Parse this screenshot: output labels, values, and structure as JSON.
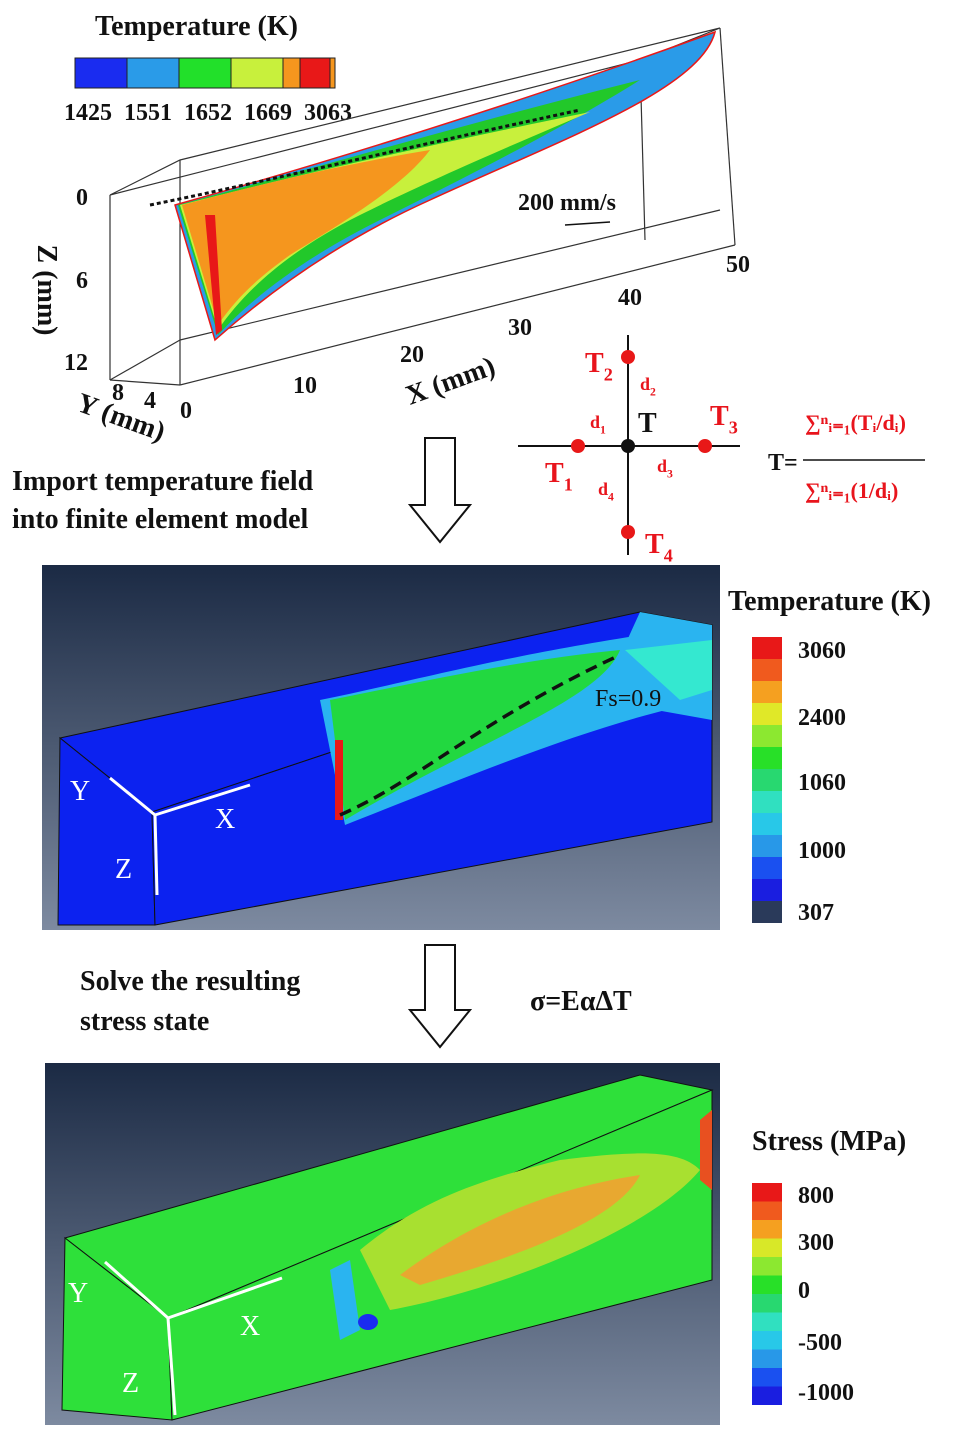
{
  "top_plot": {
    "legend_title": "Temperature (K)",
    "legend_labels": [
      1425,
      1551,
      1652,
      1669,
      3063
    ],
    "z_label": "Z (mm)",
    "z_ticks": [
      0,
      6,
      12
    ],
    "y_label": "Y (mm)",
    "y_ticks": [
      8,
      4,
      0
    ],
    "x_label": "X (mm)",
    "x_ticks": [
      10,
      20,
      30,
      40,
      50
    ],
    "velocity": "200 mm/s"
  },
  "interpolation": {
    "center": "T",
    "points": [
      {
        "name": "T",
        "sub": "1"
      },
      {
        "name": "T",
        "sub": "2"
      },
      {
        "name": "T",
        "sub": "3"
      },
      {
        "name": "T",
        "sub": "4"
      }
    ],
    "distances": [
      {
        "name": "d",
        "sub": "1"
      },
      {
        "name": "d",
        "sub": "2"
      },
      {
        "name": "d",
        "sub": "3"
      },
      {
        "name": "d",
        "sub": "4"
      }
    ],
    "formula": {
      "lhs": "T=",
      "numerator": "∑ⁿᵢ₌₁(Tᵢ/dᵢ)",
      "denominator": "∑ⁿᵢ₌₁(1/dᵢ)"
    }
  },
  "step1": {
    "lines": [
      "Import temperature field",
      "into finite element model"
    ]
  },
  "fe_model": {
    "legend_title": "Temperature (K)",
    "legend_labels": [
      3060,
      2400,
      1060,
      1000,
      307
    ],
    "annotation": "Fs=0.9",
    "axes": [
      "X",
      "Y",
      "Z"
    ]
  },
  "step2": {
    "lines": [
      "Solve the resulting",
      "stress state"
    ],
    "equation": "σ=EαΔT"
  },
  "stress_model": {
    "legend_title": "Stress (MPa)",
    "legend_labels": [
      800,
      300,
      0,
      -500,
      -1000
    ],
    "axes": [
      "X",
      "Y",
      "Z"
    ]
  }
}
